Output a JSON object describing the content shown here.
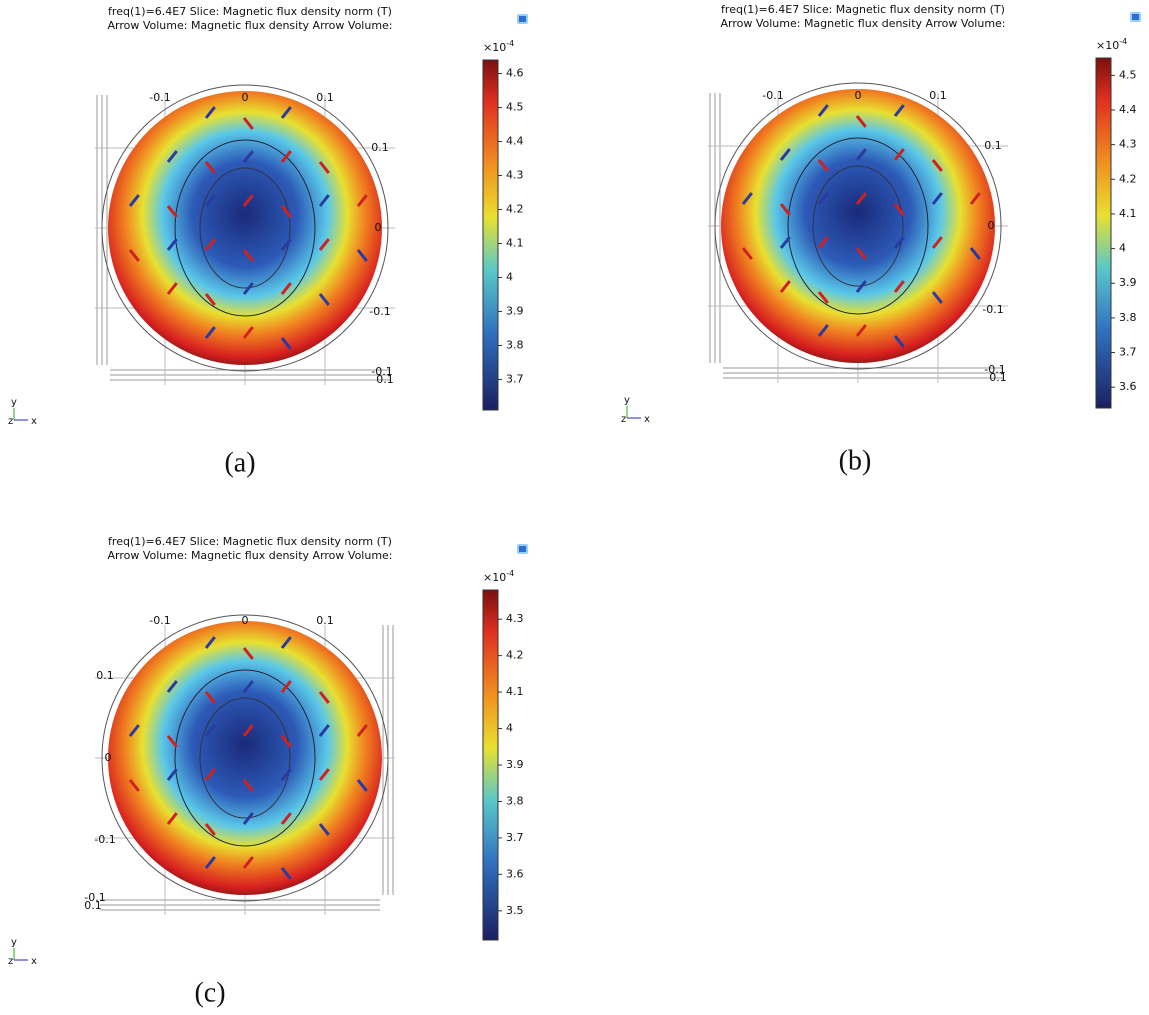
{
  "panels": [
    {
      "title_line1": "freq(1)=6.4E7   Slice: Magnetic flux density norm (T)",
      "title_line2": "Arrow Volume: Magnetic flux density  Arrow Volume:",
      "colorbar": {
        "scale": "×10",
        "exponent": "-4",
        "range": [
          3.61,
          4.64
        ],
        "ticks": [
          3.7,
          3.8,
          3.9,
          4,
          4.1,
          4.2,
          4.3,
          4.4,
          4.5,
          4.6
        ]
      },
      "axis_labels": [
        -0.1,
        0,
        0.1,
        0.1,
        0,
        -0.1,
        -0.1,
        0.1
      ],
      "triad": [
        "y",
        "z",
        "x"
      ],
      "caption": "(a)"
    },
    {
      "title_line1": "freq(1)=6.4E7   Slice: Magnetic flux density norm (T)",
      "title_line2": "Arrow Volume: Magnetic flux density  Arrow Volume:",
      "colorbar": {
        "scale": "×10",
        "exponent": "-4",
        "range": [
          3.54,
          4.55
        ],
        "ticks": [
          3.6,
          3.7,
          3.8,
          3.9,
          4,
          4.1,
          4.2,
          4.3,
          4.4,
          4.5
        ]
      },
      "axis_labels": [
        -0.1,
        0,
        0.1,
        0.1,
        0,
        -0.1,
        -0.1,
        0.1
      ],
      "triad": [
        "y",
        "z",
        "x"
      ],
      "caption": "(b)"
    },
    {
      "title_line1": "freq(1)=6.4E7   Slice: Magnetic flux density norm (T)",
      "title_line2": "Arrow Volume: Magnetic flux density  Arrow Volume:",
      "colorbar": {
        "scale": "×10",
        "exponent": "-4",
        "range": [
          3.42,
          4.38
        ],
        "ticks": [
          3.5,
          3.6,
          3.7,
          3.8,
          3.9,
          4,
          4.1,
          4.2,
          4.3
        ]
      },
      "axis_labels": [
        -0.1,
        0,
        0.1,
        0.1,
        0,
        -0.1,
        -0.1,
        0.1
      ],
      "triad": [
        "y",
        "z",
        "x"
      ],
      "caption": "(c)"
    }
  ]
}
